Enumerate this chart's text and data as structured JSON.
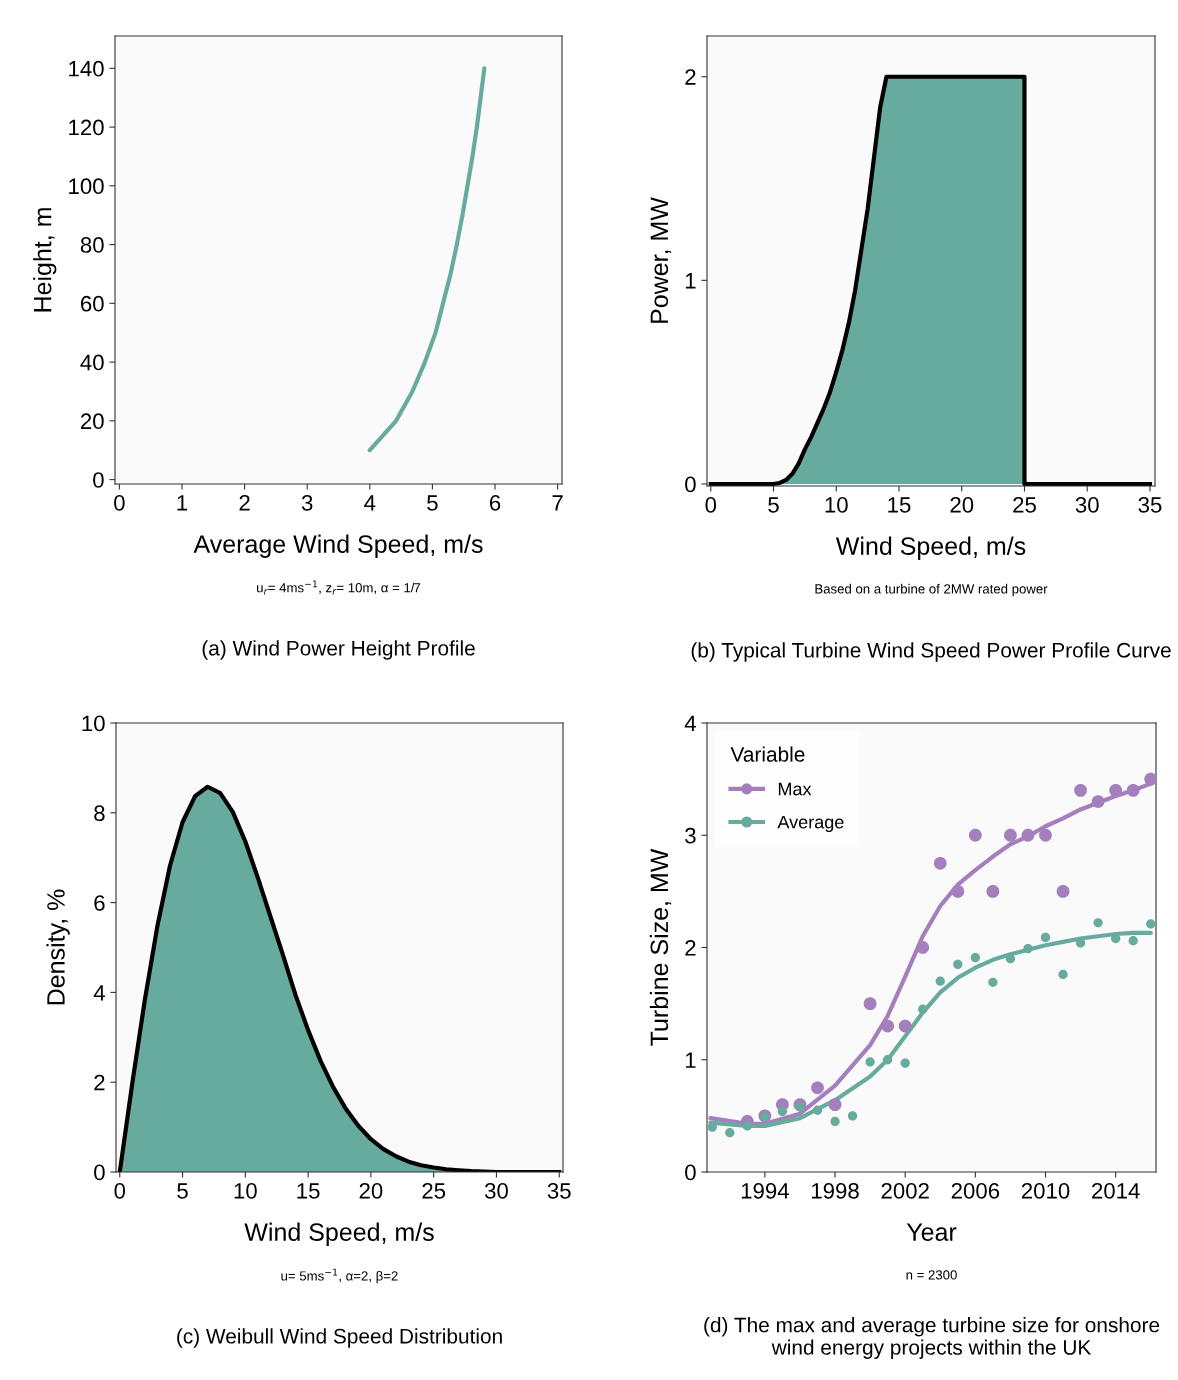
{
  "chart_data": [
    {
      "type": "line",
      "title": "(a) Wind Power Height Profile",
      "xlabel": "Average Wind Speed, m/s",
      "ylabel": "Height, m",
      "annotations": [
        "u$_{r}$= 4ms$^{−1}$, z$_{r}$= 10m, α = 1/7"
      ],
      "xlim": [
        -0.07,
        7.07
      ],
      "xticks": [
        0,
        1,
        2,
        3,
        4,
        5,
        6,
        7
      ],
      "ylim": [
        -1.5,
        151
      ],
      "yticks": [
        0,
        20,
        40,
        60,
        80,
        100,
        120,
        140
      ],
      "grid": false,
      "legend": false,
      "series": [
        {
          "color": "#67ab9f",
          "x": [
            4.0,
            4.42,
            4.68,
            4.88,
            5.05,
            5.17,
            5.29,
            5.39,
            5.48,
            5.56,
            5.64,
            5.71,
            5.77,
            5.83
          ],
          "values": [
            10,
            20,
            30,
            40,
            50,
            60,
            70,
            80,
            90,
            100,
            110,
            120,
            130,
            140
          ]
        }
      ]
    },
    {
      "type": "area",
      "title": "(b) Typical Turbine Wind Speed Power Profile Curve",
      "xlabel": "Wind Speed, m/s",
      "ylabel": "Power, MW",
      "annotations": [
        "Based on a turbine of 2MW rated power"
      ],
      "xlim": [
        -0.3,
        35.4
      ],
      "xticks": [
        0,
        5,
        10,
        15,
        20,
        25,
        30,
        35
      ],
      "ylim": [
        -0.01,
        2.2
      ],
      "yticks": [
        0,
        1,
        2
      ],
      "grid": false,
      "legend": false,
      "series": [
        {
          "color": "#67ab9f",
          "x": [
            0,
            5,
            5.5,
            6,
            6.5,
            7,
            7.5,
            8,
            8.5,
            9,
            9.5,
            10,
            10.5,
            11,
            11.5,
            12,
            12.5,
            13,
            13.5,
            14,
            25,
            25,
            35
          ],
          "values": [
            0,
            0,
            0.005,
            0.02,
            0.05,
            0.1,
            0.17,
            0.23,
            0.3,
            0.37,
            0.45,
            0.55,
            0.66,
            0.79,
            0.95,
            1.15,
            1.35,
            1.6,
            1.85,
            2.0,
            2.0,
            0,
            0
          ]
        }
      ]
    },
    {
      "type": "area",
      "title": "(c) Weibull Wind Speed Distribution",
      "xlabel": "Wind Speed, m/s",
      "ylabel": "Density, %",
      "annotations": [
        "u= 5ms$^{−1}$, α=2, β=2"
      ],
      "xlim": [
        -0.3,
        35.3
      ],
      "xticks": [
        0,
        5,
        10,
        15,
        20,
        25,
        30,
        35
      ],
      "ylim": [
        0,
        10
      ],
      "yticks": [
        0,
        2,
        4,
        6,
        8,
        10
      ],
      "grid": false,
      "legend": false,
      "series": [
        {
          "color": "#67ab9f",
          "x": [
            0,
            1,
            2,
            3,
            4,
            5,
            6,
            7,
            8,
            9,
            10,
            11,
            12,
            13,
            14,
            15,
            16,
            17,
            18,
            19,
            20,
            21,
            22,
            23,
            24,
            25,
            26,
            27,
            28,
            30,
            35
          ],
          "values": [
            0,
            1.98,
            3.84,
            5.48,
            6.82,
            7.79,
            8.37,
            8.58,
            8.44,
            8.02,
            7.36,
            6.55,
            5.69,
            4.83,
            3.94,
            3.16,
            2.47,
            1.89,
            1.41,
            1.03,
            0.73,
            0.51,
            0.35,
            0.23,
            0.15,
            0.1,
            0.06,
            0.04,
            0.02,
            0,
            0
          ]
        }
      ]
    },
    {
      "type": "line",
      "title": "(d) The max and average turbine size for onshore wind energy projects within the UK",
      "xlabel": "Year",
      "ylabel": "Turbine Size, MW",
      "legend_title": "Variable",
      "annotations": [
        "n = 2300"
      ],
      "xlim": [
        1990.7,
        2016.3
      ],
      "xticks": [
        1994,
        1998,
        2002,
        2006,
        2010,
        2014
      ],
      "ylim": [
        0,
        4
      ],
      "yticks": [
        0,
        1,
        2,
        3,
        4
      ],
      "grid": false,
      "legend": "top left",
      "series": [
        {
          "type": "scatter",
          "marker": "circle",
          "color": "#a57fbd",
          "x": [
            1993,
            1994,
            1995,
            1996,
            1997,
            1998,
            2000,
            2001,
            2002,
            2003,
            2004,
            2005,
            2006,
            2007,
            2008,
            2009,
            2010,
            2011,
            2012,
            2013,
            2014,
            2015,
            2016
          ],
          "values": [
            0.45,
            0.5,
            0.6,
            0.6,
            0.75,
            0.6,
            1.5,
            1.3,
            1.3,
            2.0,
            2.75,
            2.5,
            3.0,
            2.5,
            3.0,
            3.0,
            3.0,
            2.5,
            3.4,
            3.3,
            3.4,
            3.4,
            3.5
          ]
        },
        {
          "type": "scatter",
          "marker": "circle",
          "color": "#67ab9f",
          "x": [
            1991,
            1992,
            1993,
            1994,
            1995,
            1996,
            1997,
            1998,
            1999,
            2000,
            2001,
            2002,
            2003,
            2004,
            2005,
            2006,
            2007,
            2008,
            2009,
            2010,
            2011,
            2012,
            2013,
            2014,
            2015,
            2016
          ],
          "values": [
            0.4,
            0.35,
            0.41,
            0.49,
            0.54,
            0.58,
            0.55,
            0.45,
            0.5,
            0.98,
            1.0,
            0.97,
            1.45,
            1.7,
            1.85,
            1.91,
            1.69,
            1.9,
            1.99,
            2.09,
            1.76,
            2.04,
            2.22,
            2.08,
            2.06,
            2.21
          ]
        },
        {
          "name": "Max",
          "marker": "none",
          "color": "#a57fbd",
          "x": [
            1990.9,
            1993,
            1994,
            1996,
            1998,
            2000,
            2001,
            2002,
            2003,
            2004,
            2005,
            2006,
            2007,
            2008,
            2009,
            2010,
            2011,
            2012,
            2013,
            2014,
            2015,
            2016
          ],
          "values": [
            0.48,
            0.43,
            0.43,
            0.52,
            0.77,
            1.13,
            1.39,
            1.74,
            2.1,
            2.37,
            2.56,
            2.69,
            2.81,
            2.92,
            2.99,
            3.08,
            3.15,
            3.23,
            3.29,
            3.35,
            3.4,
            3.46
          ]
        },
        {
          "name": "Average",
          "marker": "none",
          "color": "#67ab9f",
          "x": [
            1990.9,
            1993,
            1994,
            1996,
            1998,
            2000,
            2001,
            2002,
            2003,
            2004,
            2005,
            2006,
            2007,
            2008,
            2009,
            2010,
            2011,
            2012,
            2013,
            2014,
            2015,
            2016
          ],
          "values": [
            0.44,
            0.41,
            0.41,
            0.48,
            0.64,
            0.85,
            1.0,
            1.21,
            1.42,
            1.6,
            1.73,
            1.82,
            1.89,
            1.94,
            1.98,
            2.02,
            2.05,
            2.08,
            2.1,
            2.12,
            2.13,
            2.13
          ]
        }
      ]
    }
  ]
}
